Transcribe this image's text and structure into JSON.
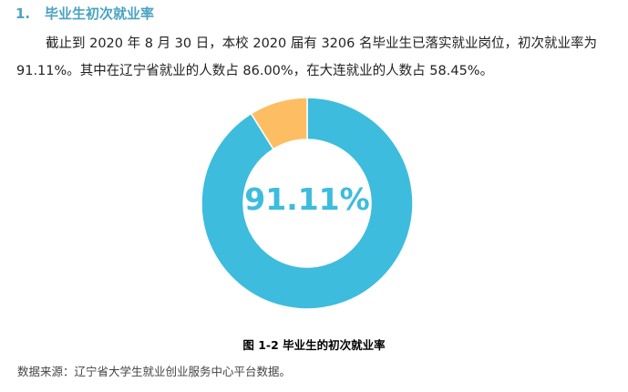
{
  "section": {
    "number": "1.",
    "title": "毕业生初次就业率"
  },
  "paragraph": {
    "line1": "截止到 2020 年 8 月 30 日，本校 2020 届有 3206 名毕业生已落实就业岗位，初次就业率为",
    "line2": "91.11%。其中在辽宁省就业的人数占 86.00%，在大连就业的人数占 58.45%。"
  },
  "chart_data": {
    "type": "pie",
    "subtype": "donut",
    "center_label": "91.11%",
    "slices": [
      {
        "value": 91.11,
        "color": "#3dbcde"
      },
      {
        "value": 8.89,
        "color": "#fdbe63"
      }
    ],
    "legend": "none"
  },
  "caption": "图 1-2 毕业生的初次就业率",
  "source": "数据来源：辽宁省大学生就业创业服务中心平台数据。"
}
